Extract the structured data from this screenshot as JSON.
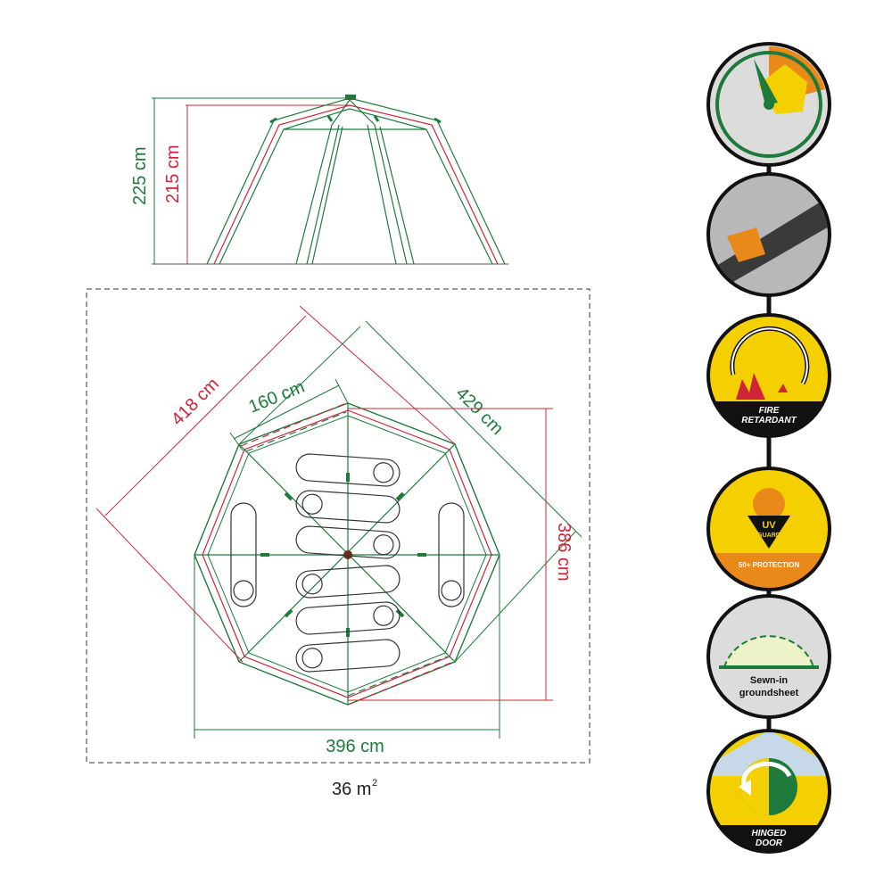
{
  "side_view": {
    "outer_height": "225 cm",
    "inner_height": "215 cm"
  },
  "floor_plan": {
    "diagonal_length": "418 cm",
    "door_width": "160 cm",
    "diagonal_width": "429 cm",
    "depth": "386 cm",
    "width": "396 cm",
    "area_value": "36 m",
    "area_unit_superscript": "2"
  },
  "feature_badges": [
    {
      "icon": "quick-pitch-clock-icon",
      "label": ""
    },
    {
      "icon": "pole-joint-icon",
      "label": ""
    },
    {
      "icon": "fire-retardant-icon",
      "label_line1": "FIRE",
      "label_line2": "RETARDANT"
    },
    {
      "icon": "uv-guard-icon",
      "emblem_line1": "UV",
      "emblem_line2": "GUARD",
      "label": "50+ PROTECTION"
    },
    {
      "icon": "groundsheet-icon",
      "label_line1": "Sewn-in",
      "label_line2": "groundsheet"
    },
    {
      "icon": "hinged-door-icon",
      "label_line1": "HINGED",
      "label_line2": "DOOR"
    }
  ],
  "colors": {
    "green": "#1e7a3a",
    "red": "#d0243a",
    "grey": "#555555",
    "yellow": "#f5d000",
    "orange": "#e8891a",
    "black": "#111111"
  }
}
